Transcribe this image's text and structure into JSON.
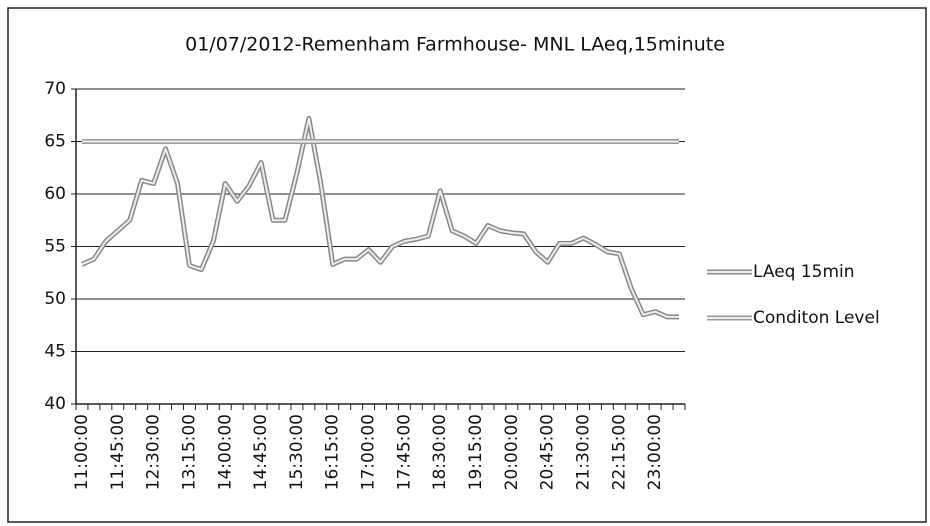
{
  "chart_data": {
    "type": "line",
    "title": "01/07/2012-Remenham Farmhouse- MNL LAeq,15minute",
    "categories": [
      "11:00:00",
      null,
      null,
      "11:45:00",
      null,
      null,
      "12:30:00",
      null,
      null,
      "13:15:00",
      null,
      null,
      "14:00:00",
      null,
      null,
      "14:45:00",
      null,
      null,
      "15:30:00",
      null,
      null,
      "16:15:00",
      null,
      null,
      "17:00:00",
      null,
      null,
      "17:45:00",
      null,
      null,
      "18:30:00",
      null,
      null,
      "19:15:00",
      null,
      null,
      "20:00:00",
      null,
      null,
      "20:45:00",
      null,
      null,
      "21:30:00",
      null,
      null,
      "22:15:00",
      null,
      null,
      "23:00:00",
      null,
      null
    ],
    "series": [
      {
        "name": "LAeq 15min",
        "color": "#888888",
        "values": [
          53.3,
          53.8,
          55.5,
          56.5,
          57.5,
          61.3,
          61,
          64.3,
          61,
          53.2,
          52.8,
          55.5,
          61,
          59.3,
          60.8,
          63,
          57.5,
          57.5,
          62,
          67.2,
          61,
          53.3,
          53.8,
          53.8,
          54.7,
          53.5,
          55,
          55.5,
          55.7,
          56,
          60.3,
          56.5,
          56,
          55.3,
          57,
          56.5,
          56.3,
          56.2,
          54.5,
          53.5,
          55.3,
          55.3,
          55.8,
          55.2,
          54.5,
          54.3,
          51,
          48.5,
          48.8,
          48.3,
          48.3
        ]
      },
      {
        "name": "Conditon Level",
        "color": "#999999",
        "values": [
          65,
          65,
          65,
          65,
          65,
          65,
          65,
          65,
          65,
          65,
          65,
          65,
          65,
          65,
          65,
          65,
          65,
          65,
          65,
          65,
          65,
          65,
          65,
          65,
          65,
          65,
          65,
          65,
          65,
          65,
          65,
          65,
          65,
          65,
          65,
          65,
          65,
          65,
          65,
          65,
          65,
          65,
          65,
          65,
          65,
          65,
          65,
          65,
          65,
          65,
          65
        ]
      }
    ],
    "ylim": [
      40,
      70
    ],
    "yticks": [
      40,
      45,
      50,
      55,
      60,
      65,
      70
    ],
    "grid": true,
    "legend": "right"
  }
}
